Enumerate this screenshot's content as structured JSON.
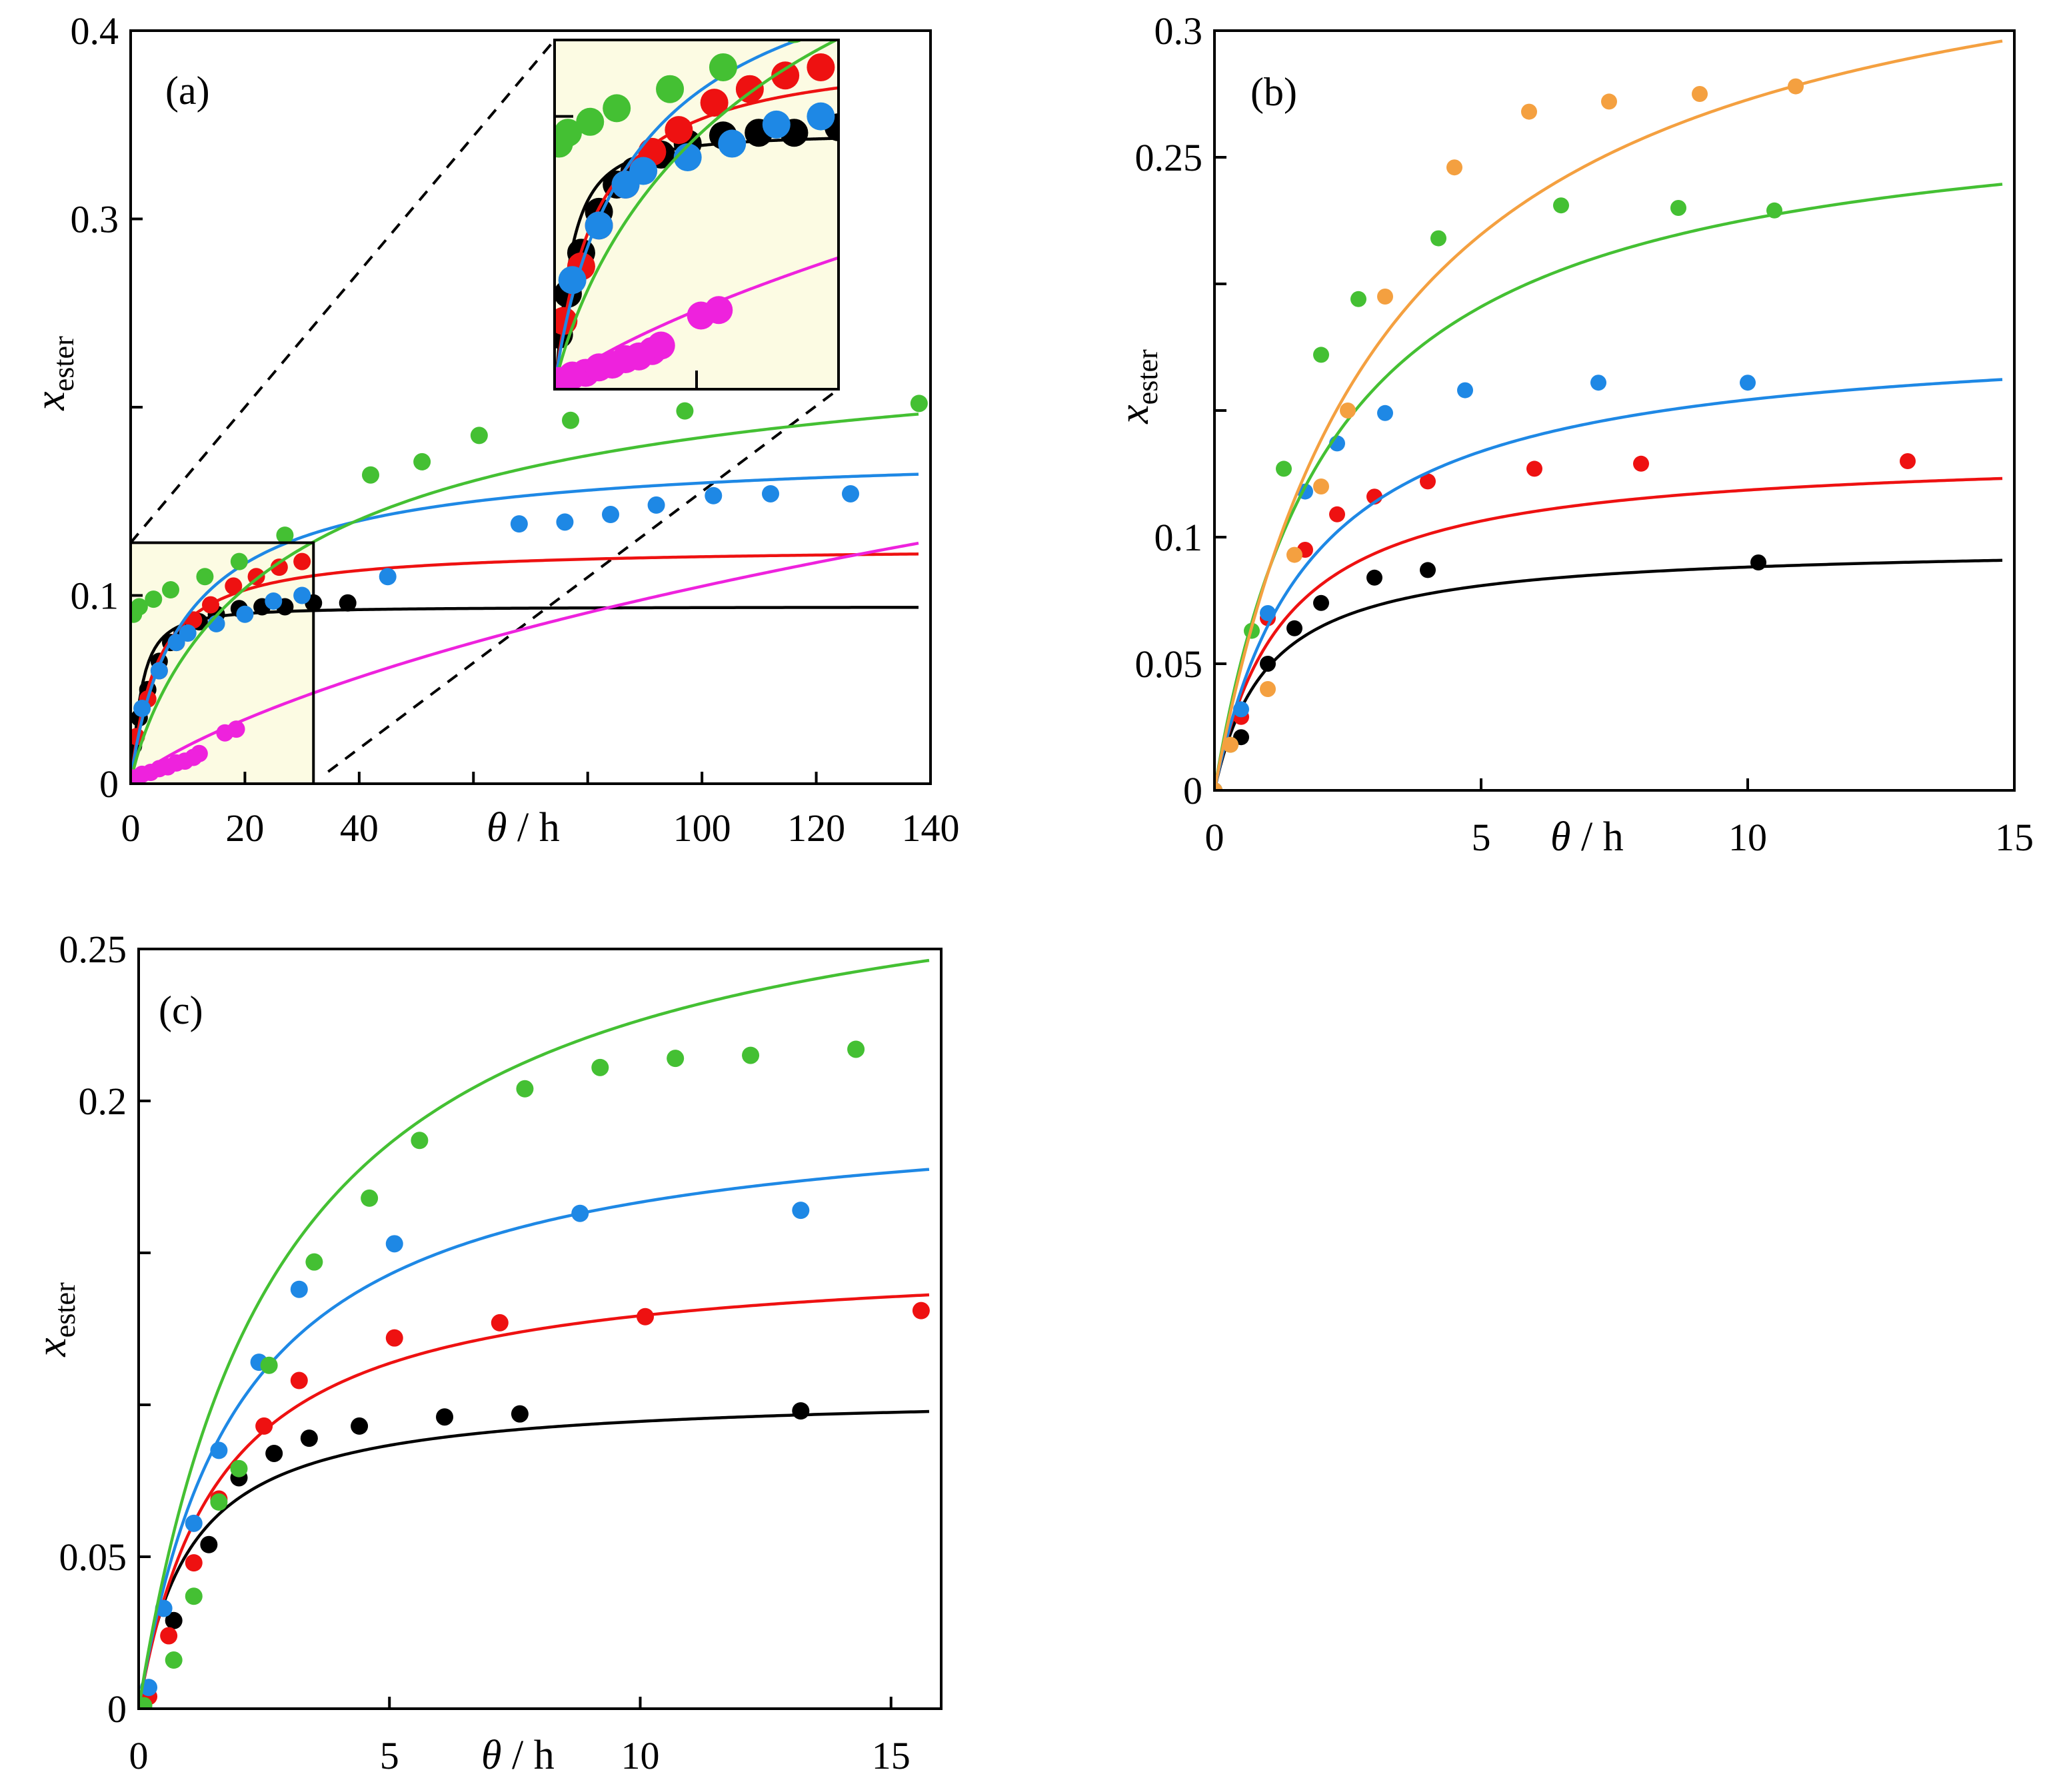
{
  "figure": {
    "axis_variable_x": "θ",
    "axis_unit_x": " / h",
    "axis_variable_y": "x",
    "axis_subscript_y": "ester"
  },
  "colors": {
    "black": "#000000",
    "red": "#ee1111",
    "blue": "#1e88e5",
    "green": "#44c033",
    "magenta": "#ee22dd",
    "orange": "#f4a040",
    "inset_bg": "#fcfbe3"
  },
  "chart_data": [
    {
      "panel": "(a)",
      "type": "scatter",
      "xlabel": "θ / h",
      "ylabel": "x ester",
      "xlim": [
        0,
        140
      ],
      "ylim": [
        0,
        0.4
      ],
      "x_ticks": [
        0,
        20,
        40,
        60,
        80,
        100,
        120,
        140
      ],
      "x_tick_labels": [
        "0",
        "20",
        "40",
        "",
        "",
        "100",
        "120",
        "140"
      ],
      "y_ticks": [
        0,
        0.1,
        0.2,
        0.3,
        0.4
      ],
      "y_tick_labels": [
        "0",
        "0.1",
        "",
        "0.3",
        "0.4"
      ],
      "zoom_box": {
        "xlim": [
          0,
          32
        ],
        "ylim": [
          0,
          0.128
        ]
      },
      "series": [
        {
          "name": "black",
          "color": "black",
          "points": [
            [
              0.5,
              0.02
            ],
            [
              1.5,
              0.035
            ],
            [
              3,
              0.05
            ],
            [
              5,
              0.065
            ],
            [
              7,
              0.075
            ],
            [
              9,
              0.08
            ],
            [
              12,
              0.086
            ],
            [
              15,
              0.09
            ],
            [
              19,
              0.093
            ],
            [
              23,
              0.094
            ],
            [
              27,
              0.094
            ],
            [
              32,
              0.096
            ],
            [
              38,
              0.096
            ]
          ],
          "curve": [
            0.094,
            2.0,
            1.3
          ]
        },
        {
          "name": "red",
          "color": "red",
          "points": [
            [
              1,
              0.025
            ],
            [
              3,
              0.045
            ],
            [
              5,
              0.06
            ],
            [
              8,
              0.075
            ],
            [
              11,
              0.087
            ],
            [
              14,
              0.095
            ],
            [
              18,
              0.105
            ],
            [
              22,
              0.11
            ],
            [
              26,
              0.115
            ],
            [
              30,
              0.118
            ]
          ],
          "curve": [
            0.126,
            4.5,
            1.0
          ]
        },
        {
          "name": "blue",
          "color": "blue",
          "points": [
            [
              2,
              0.04
            ],
            [
              5,
              0.06
            ],
            [
              8,
              0.075
            ],
            [
              10,
              0.08
            ],
            [
              15,
              0.085
            ],
            [
              20,
              0.09
            ],
            [
              25,
              0.097
            ],
            [
              30,
              0.1
            ],
            [
              45,
              0.11
            ],
            [
              68,
              0.138
            ],
            [
              76,
              0.139
            ],
            [
              84,
              0.143
            ],
            [
              92,
              0.148
            ],
            [
              102,
              0.153
            ],
            [
              112,
              0.154
            ],
            [
              126,
              0.154
            ]
          ],
          "curve": [
            0.18,
            8.0,
            0.9
          ]
        },
        {
          "name": "green",
          "color": "green",
          "points": [
            [
              0.5,
              0.09
            ],
            [
              1.5,
              0.094
            ],
            [
              4,
              0.098
            ],
            [
              7,
              0.103
            ],
            [
              13,
              0.11
            ],
            [
              19,
              0.118
            ],
            [
              27,
              0.132
            ],
            [
              42,
              0.164
            ],
            [
              51,
              0.171
            ],
            [
              61,
              0.185
            ],
            [
              77,
              0.193
            ],
            [
              97,
              0.198
            ],
            [
              138,
              0.202
            ]
          ],
          "curve": [
            0.25,
            18.0,
            0.85
          ]
        },
        {
          "name": "magenta",
          "color": "magenta",
          "points": [
            [
              0.5,
              0.003
            ],
            [
              2,
              0.005
            ],
            [
              3.5,
              0.006
            ],
            [
              5,
              0.008
            ],
            [
              6.5,
              0.009
            ],
            [
              8,
              0.011
            ],
            [
              9.5,
              0.012
            ],
            [
              11,
              0.014
            ],
            [
              12,
              0.016
            ],
            [
              16.5,
              0.027
            ],
            [
              18.5,
              0.029
            ]
          ],
          "curve": [
            0.5,
            150.0,
            0.8
          ]
        }
      ],
      "inset": {
        "xlim": [
          0,
          32
        ],
        "ylim": [
          0,
          0.128
        ],
        "x_ticks": [
          16
        ],
        "y_ticks": [
          0.1
        ]
      }
    },
    {
      "panel": "(b)",
      "type": "scatter",
      "xlabel": "θ / h",
      "ylabel": "x ester",
      "xlim": [
        0,
        15
      ],
      "ylim": [
        0,
        0.3
      ],
      "x_ticks": [
        0,
        5,
        10,
        15
      ],
      "x_tick_labels": [
        "0",
        "5",
        "10",
        "15"
      ],
      "y_ticks": [
        0,
        0.05,
        0.1,
        0.15,
        0.2,
        0.25,
        0.3
      ],
      "y_tick_labels": [
        "0",
        "0.05",
        "0.1",
        "",
        "",
        "0.25",
        "0.3"
      ],
      "series": [
        {
          "name": "black",
          "color": "black",
          "points": [
            [
              0,
              0
            ],
            [
              0.5,
              0.021
            ],
            [
              1,
              0.05
            ],
            [
              1.5,
              0.064
            ],
            [
              2,
              0.074
            ],
            [
              3,
              0.084
            ],
            [
              4,
              0.087
            ],
            [
              10.2,
              0.09
            ]
          ],
          "curve": [
            0.097,
            1.0,
            1.0
          ]
        },
        {
          "name": "red",
          "color": "red",
          "points": [
            [
              0,
              0
            ],
            [
              0.5,
              0.029
            ],
            [
              1,
              0.068
            ],
            [
              1.7,
              0.095
            ],
            [
              2.3,
              0.109
            ],
            [
              3,
              0.116
            ],
            [
              4,
              0.122
            ],
            [
              6,
              0.127
            ],
            [
              8,
              0.129
            ],
            [
              13,
              0.13
            ]
          ],
          "curve": [
            0.134,
            1.3,
            1.0
          ]
        },
        {
          "name": "blue",
          "color": "blue",
          "points": [
            [
              0,
              0
            ],
            [
              0.5,
              0.032
            ],
            [
              1,
              0.07
            ],
            [
              1.7,
              0.118
            ],
            [
              2.3,
              0.137
            ],
            [
              3.2,
              0.149
            ],
            [
              4.7,
              0.158
            ],
            [
              7.2,
              0.161
            ],
            [
              10,
              0.161
            ]
          ],
          "curve": [
            0.182,
            1.8,
            1.0
          ]
        },
        {
          "name": "green",
          "color": "green",
          "points": [
            [
              0,
              0
            ],
            [
              0.3,
              0.018
            ],
            [
              0.7,
              0.063
            ],
            [
              1.3,
              0.127
            ],
            [
              2,
              0.172
            ],
            [
              2.7,
              0.194
            ],
            [
              4.2,
              0.218
            ],
            [
              6.5,
              0.231
            ],
            [
              8.7,
              0.23
            ],
            [
              10.5,
              0.229
            ]
          ],
          "curve": [
            0.275,
            2.2,
            1.0
          ]
        },
        {
          "name": "orange",
          "color": "orange",
          "points": [
            [
              0,
              0
            ],
            [
              0.3,
              0.018
            ],
            [
              1,
              0.04
            ],
            [
              1.5,
              0.093
            ],
            [
              2.5,
              0.15
            ],
            [
              2,
              0.12
            ],
            [
              3.2,
              0.195
            ],
            [
              4.5,
              0.246
            ],
            [
              5.9,
              0.268
            ],
            [
              7.4,
              0.272
            ],
            [
              9.1,
              0.275
            ],
            [
              10.9,
              0.278
            ]
          ],
          "curve": [
            0.36,
            3.2,
            1.0
          ]
        }
      ]
    },
    {
      "panel": "(c)",
      "type": "scatter",
      "xlabel": "θ / h",
      "ylabel": "x ester",
      "xlim": [
        0,
        16
      ],
      "ylim": [
        0,
        0.25
      ],
      "x_ticks": [
        0,
        5,
        10,
        15
      ],
      "x_tick_labels": [
        "0",
        "5",
        "10",
        "15"
      ],
      "y_ticks": [
        0,
        0.05,
        0.1,
        0.15,
        0.2,
        0.25
      ],
      "y_tick_labels": [
        "0",
        "0.05",
        "",
        "",
        "0.2",
        "0.25"
      ],
      "series": [
        {
          "name": "black",
          "color": "black",
          "points": [
            [
              0.7,
              0.029
            ],
            [
              1.4,
              0.054
            ],
            [
              2.0,
              0.076
            ],
            [
              2.7,
              0.084
            ],
            [
              3.4,
              0.089
            ],
            [
              4.4,
              0.093
            ],
            [
              6.1,
              0.096
            ],
            [
              7.6,
              0.097
            ],
            [
              13.2,
              0.098
            ]
          ],
          "curve": [
            0.104,
            1.0,
            1.0
          ]
        },
        {
          "name": "red",
          "color": "red",
          "points": [
            [
              0.2,
              0.004
            ],
            [
              0.6,
              0.024
            ],
            [
              1.1,
              0.048
            ],
            [
              1.6,
              0.069
            ],
            [
              2.5,
              0.093
            ],
            [
              3.2,
              0.108
            ],
            [
              5.1,
              0.122
            ],
            [
              7.2,
              0.127
            ],
            [
              10.1,
              0.129
            ],
            [
              15.6,
              0.131
            ]
          ],
          "curve": [
            0.15,
            1.6,
            1.0
          ]
        },
        {
          "name": "blue",
          "color": "blue",
          "points": [
            [
              0.2,
              0.007
            ],
            [
              0.5,
              0.033
            ],
            [
              1.1,
              0.061
            ],
            [
              1.6,
              0.085
            ],
            [
              2.4,
              0.114
            ],
            [
              3.2,
              0.138
            ],
            [
              5.1,
              0.153
            ],
            [
              8.8,
              0.163
            ],
            [
              13.2,
              0.164
            ]
          ],
          "curve": [
            0.2,
            2.0,
            1.0
          ]
        },
        {
          "name": "green",
          "color": "green",
          "points": [
            [
              0.1,
              0.001
            ],
            [
              0.7,
              0.016
            ],
            [
              1.1,
              0.037
            ],
            [
              1.6,
              0.068
            ],
            [
              2.0,
              0.079
            ],
            [
              2.6,
              0.113
            ],
            [
              3.5,
              0.147
            ],
            [
              4.6,
              0.168
            ],
            [
              5.6,
              0.187
            ],
            [
              7.7,
              0.204
            ],
            [
              9.2,
              0.211
            ],
            [
              10.7,
              0.214
            ],
            [
              12.2,
              0.215
            ],
            [
              14.3,
              0.217
            ]
          ],
          "curve": [
            0.29,
            2.8,
            1.0
          ]
        }
      ]
    }
  ]
}
